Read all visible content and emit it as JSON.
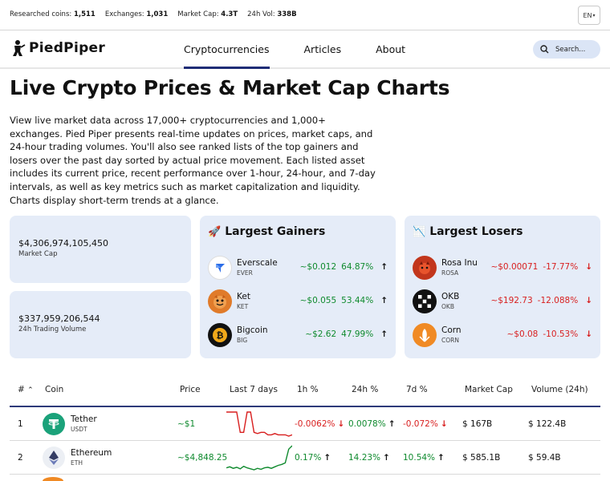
{
  "topbar": {
    "stats": [
      {
        "label": "Researched coins:",
        "value": "1,511"
      },
      {
        "label": "Exchanges:",
        "value": "1,031"
      },
      {
        "label": "Market Cap:",
        "value": "4.3T"
      },
      {
        "label": "24h Vol:",
        "value": "338B"
      }
    ],
    "language": "EN"
  },
  "nav": {
    "brand": "PiedPiper",
    "links": [
      "Cryptocurrencies",
      "Articles",
      "About"
    ],
    "active_link": "Cryptocurrencies",
    "search_placeholder": "Search..."
  },
  "hero": {
    "title": "Live Crypto Prices & Market Cap Charts",
    "description": "View live market data across 17,000+ cryptocurrencies and 1,000+ exchanges. Pied Piper presents real-time updates on prices, market caps, and 24-hour trading volumes. You'll also see ranked lists of the top gainers and losers over the past day sorted by actual price movement. Each listed asset includes its current price, recent performance over 1-hour, 24-hour, and 7-day intervals, as well as key metrics such as market capitalization and liquidity. Charts display short-term trends at a glance."
  },
  "stats": {
    "market_cap": {
      "value": "$4,306,974,105,450",
      "label": "Market Cap"
    },
    "volume": {
      "value": "$337,959,206,544",
      "label": "24h Trading Volume"
    }
  },
  "gainers": {
    "title": "Largest Gainers",
    "icon": "rocket-icon",
    "items": [
      {
        "name": "Everscale",
        "symbol": "EVER",
        "price": "~$0.012",
        "change": "64.87%",
        "color": "#2b6de8"
      },
      {
        "name": "Ket",
        "symbol": "KET",
        "price": "~$0.055",
        "change": "53.44%",
        "color": "#e07b2a"
      },
      {
        "name": "Bigcoin",
        "symbol": "BIG",
        "price": "~$2.62",
        "change": "47.99%",
        "color": "#f0a81a"
      }
    ]
  },
  "losers": {
    "title": "Largest Losers",
    "icon": "chart-down-icon",
    "items": [
      {
        "name": "Rosa Inu",
        "symbol": "ROSA",
        "price": "~$0.00071",
        "change": "-17.77%",
        "color": "#c2361c"
      },
      {
        "name": "OKB",
        "symbol": "OKB",
        "price": "~$192.73",
        "change": "-12.088%",
        "color": "#111111"
      },
      {
        "name": "Corn",
        "symbol": "CORN",
        "price": "~$0.08",
        "change": "-10.53%",
        "color": "#f08a24"
      }
    ]
  },
  "table": {
    "headers": [
      "#",
      "Coin",
      "Price",
      "Last 7 days",
      "1h %",
      "24h %",
      "7d %",
      "Market Cap",
      "Volume (24h)"
    ],
    "rows": [
      {
        "rank": "1",
        "name": "Tether",
        "symbol": "USDT",
        "price": "~$1",
        "h1": "-0.0062%",
        "h24": "0.0078%",
        "d7": "-0.072%",
        "mcap": "$ 167B",
        "vol": "$ 122.4B",
        "color": "#1ba27a",
        "h1_dir": "down",
        "h24_dir": "up",
        "d7_dir": "down",
        "spark_color": "#d81f1f",
        "spark": [
          1.0008,
          1.0008,
          1.0008,
          1.0008,
          0.9992,
          0.9992,
          1.0008,
          1.0008,
          0.9992,
          0.9991,
          0.9992,
          0.9992,
          0.999,
          0.999,
          0.9991,
          0.999,
          0.999,
          0.999,
          0.9989,
          0.999
        ]
      },
      {
        "rank": "2",
        "name": "Ethereum",
        "symbol": "ETH",
        "price": "~$4,848.25",
        "h1": "0.17%",
        "h24": "14.23%",
        "d7": "10.54%",
        "mcap": "$ 585.1B",
        "vol": "$ 59.4B",
        "color": "#6b7bb8",
        "h1_dir": "up",
        "h24_dir": "up",
        "d7_dir": "up",
        "spark_color": "#0f8a2e",
        "spark": [
          4400,
          4420,
          4390,
          4410,
          4380,
          4430,
          4400,
          4380,
          4360,
          4390,
          4370,
          4400,
          4410,
          4390,
          4420,
          4450,
          4470,
          4500,
          4780,
          4850
        ]
      }
    ]
  }
}
